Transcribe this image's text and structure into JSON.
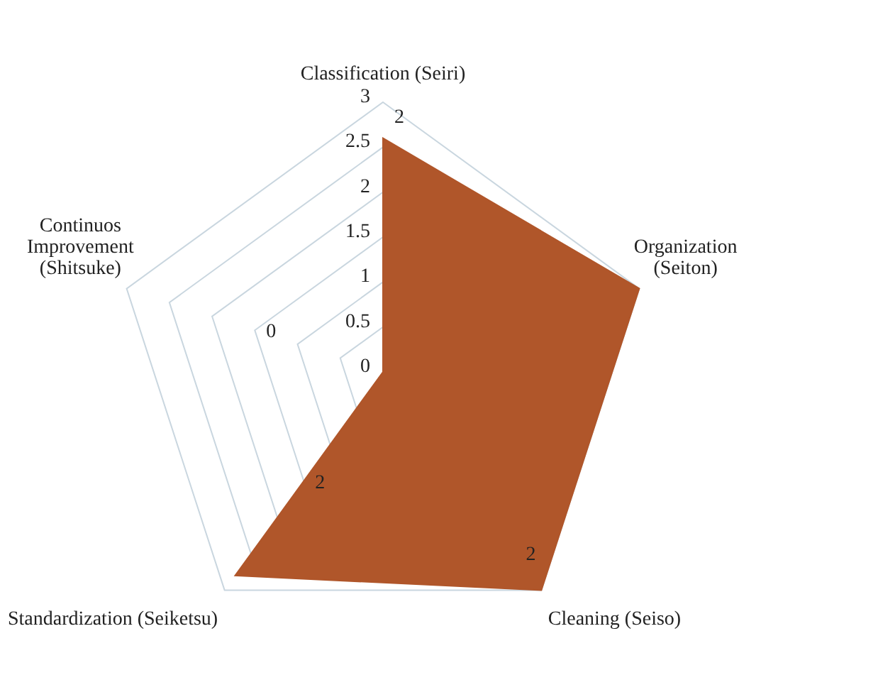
{
  "chart_data": {
    "type": "radar",
    "categories": [
      "Classification (Seiri)",
      "Organization (Seiton)",
      "Cleaning (Seiso)",
      "Standardization (Seiketsu)",
      "Continuos Improvement (Shitsuke)"
    ],
    "series": [
      {
        "color": "#b0562a",
        "values": [
          2.6,
          3,
          3,
          2.8,
          0
        ]
      }
    ],
    "ylim": [
      0,
      3
    ],
    "yticks": [
      0,
      0.5,
      1,
      1.5,
      2,
      2.5,
      3
    ],
    "grid": true,
    "annotations": [
      {
        "text": "2",
        "x": "Classification (Seiri)"
      },
      {
        "text": "2",
        "x": "Cleaning (Seiso)"
      },
      {
        "text": "2",
        "x": "Standardization (Seiketsu)"
      },
      {
        "text": "0",
        "x": "Continuos Improvement (Shitsuke)"
      }
    ]
  }
}
